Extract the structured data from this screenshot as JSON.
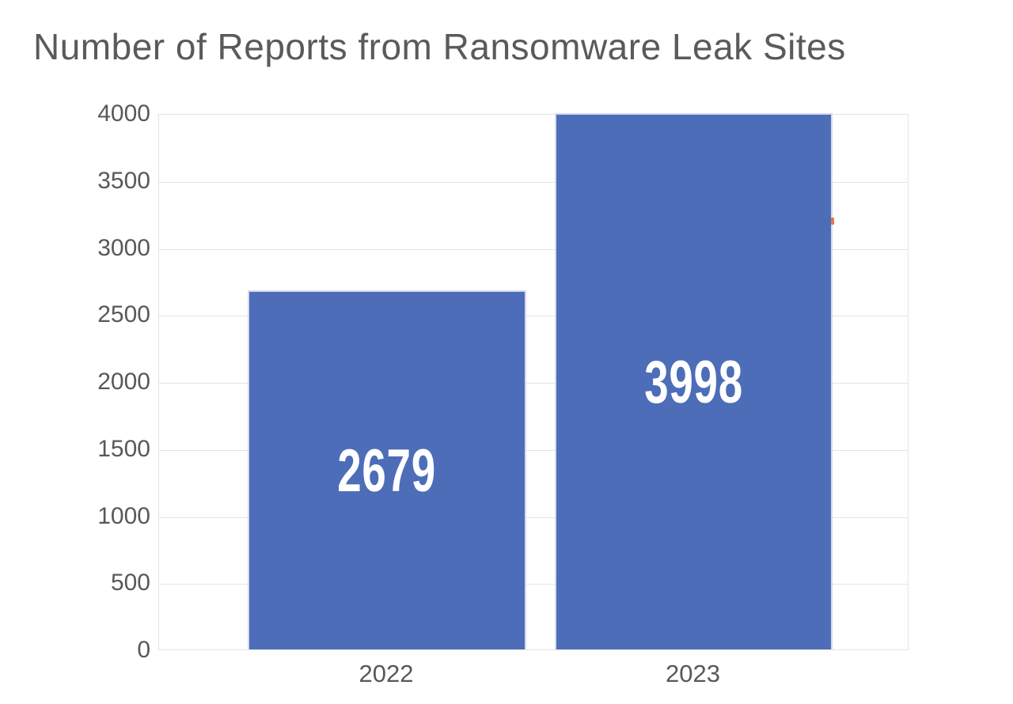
{
  "title": "Number of Reports from Ransomware Leak Sites",
  "chart_data": {
    "type": "bar",
    "title": "Number of Reports from Ransomware Leak Sites",
    "categories": [
      "2022",
      "2023"
    ],
    "values": [
      2679,
      3998
    ],
    "xlabel": "",
    "ylabel": "",
    "ylim": [
      0,
      4000
    ],
    "yticks": [
      0,
      500,
      1000,
      1500,
      2000,
      2500,
      3000,
      3500,
      4000
    ],
    "grid": true,
    "legend": "none",
    "colors": {
      "bar_fill": "#4d6db8",
      "bar_edge": "#d4dbf0",
      "bar_label_text": "#ffffff",
      "axis_text": "#58585a",
      "title_text": "#595a5c",
      "gridline": "#e4e4e6",
      "background": "#ffffff",
      "stray_marker": "#e0784a"
    }
  }
}
